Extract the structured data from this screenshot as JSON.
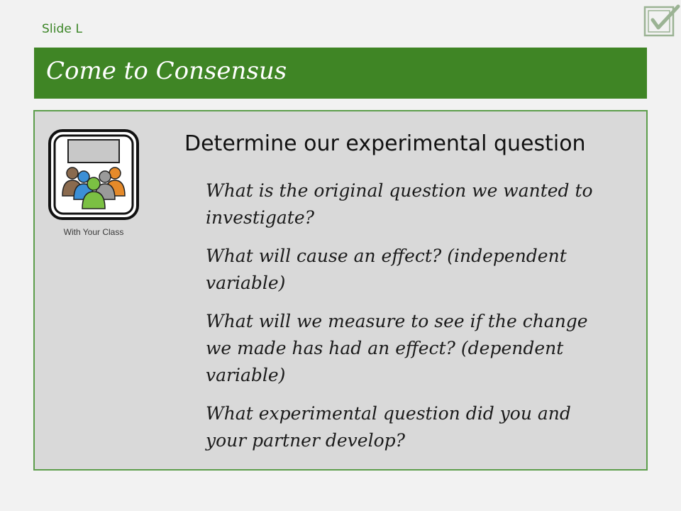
{
  "slide": {
    "label": "Slide L",
    "title": "Come to Consensus"
  },
  "icon": {
    "name": "class-group-icon",
    "caption": "With Your Class",
    "logo": "checkbox-check-icon"
  },
  "content": {
    "heading": "Determine our experimental question",
    "questions": [
      "What is the original question we wanted to investigate?",
      "What will cause an effect? (independent variable)",
      "What will we measure to see if the change we made has had an effect? (dependent variable)",
      "What experimental question did you and your partner develop?"
    ]
  },
  "colors": {
    "accent_green": "#3f8525",
    "panel_gray": "#d9d9d9",
    "panel_border": "#5d9e4b",
    "background": "#f2f2f2"
  }
}
